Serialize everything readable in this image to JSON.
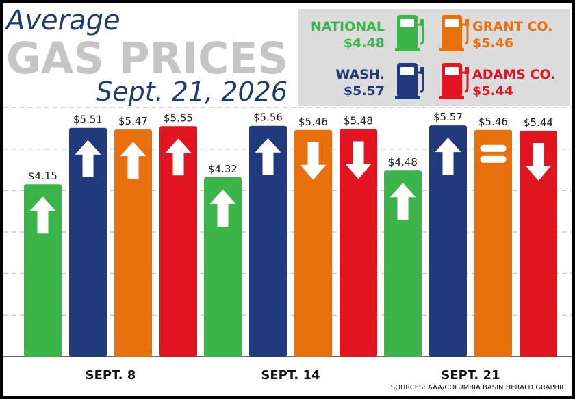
{
  "title": {
    "line1": "Average",
    "line2": "GAS PRICES",
    "date": "Sept. 21, 2026"
  },
  "colors": {
    "national": "#3bb54a",
    "wash": "#213a7d",
    "grant": "#e8700d",
    "adams": "#e1141f",
    "title_gray": "#c5c5c5",
    "title_navy": "#1f3a6e",
    "legend_bg": "#dcdcdc",
    "grid": "#c8c8c8"
  },
  "legend": [
    {
      "key": "national",
      "name": "NATIONAL",
      "value": "$4.48",
      "icon": "gas-pump-icon"
    },
    {
      "key": "grant",
      "name": "GRANT CO.",
      "value": "$5.46",
      "icon": "gas-pump-icon"
    },
    {
      "key": "wash",
      "name": "WASH.",
      "value": "$5.57",
      "icon": "gas-pump-icon"
    },
    {
      "key": "adams",
      "name": "ADAMS CO.",
      "value": "$5.44",
      "icon": "gas-pump-icon"
    }
  ],
  "source": "SOURCES: AAA/COLUMBIA BASIN HERALD GRAPHIC",
  "chart_data": {
    "type": "bar",
    "categories": [
      "SEPT. 8",
      "SEPT. 14",
      "SEPT. 21"
    ],
    "ylim": [
      0,
      6
    ],
    "grid": true,
    "series": [
      {
        "name": "NATIONAL",
        "key": "national",
        "values": [
          4.15,
          4.32,
          4.48
        ],
        "labels": [
          "$4.15",
          "$4.32",
          "$4.48"
        ],
        "trend": [
          "up",
          "up",
          "up"
        ]
      },
      {
        "name": "WASH.",
        "key": "wash",
        "values": [
          5.51,
          5.56,
          5.57
        ],
        "labels": [
          "$5.51",
          "$5.56",
          "$5.57"
        ],
        "trend": [
          "up",
          "up",
          "up"
        ]
      },
      {
        "name": "GRANT CO.",
        "key": "grant",
        "values": [
          5.47,
          5.46,
          5.46
        ],
        "labels": [
          "$5.47",
          "$5.46",
          "$5.46"
        ],
        "trend": [
          "up",
          "down",
          "equal"
        ]
      },
      {
        "name": "ADAMS CO.",
        "key": "adams",
        "values": [
          5.55,
          5.48,
          5.44
        ],
        "labels": [
          "$5.55",
          "$5.48",
          "$5.44"
        ],
        "trend": [
          "up",
          "down",
          "down"
        ]
      }
    ]
  }
}
